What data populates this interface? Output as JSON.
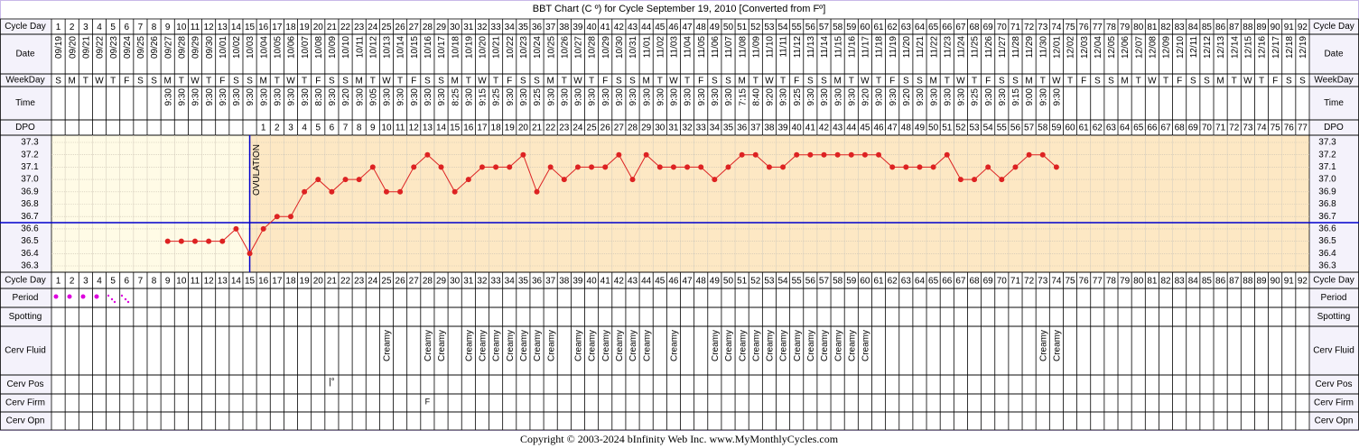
{
  "title": "BBT Chart (C º) for Cycle September 19, 2010  [Converted from Fº]",
  "row_labels": {
    "cycle_day": "Cycle Day",
    "date": "Date",
    "weekday": "WeekDay",
    "time": "Time",
    "dpo": "DPO",
    "period": "Period",
    "spotting": "Spotting",
    "cerv_fluid": "Cerv Fluid",
    "cerv_pos": "Cerv Pos",
    "cerv_firm": "Cerv Firm",
    "cerv_opn": "Cerv Opn"
  },
  "cycle_days": [
    1,
    2,
    3,
    4,
    5,
    6,
    7,
    8,
    9,
    10,
    11,
    12,
    13,
    14,
    15,
    16,
    17,
    18,
    19,
    20,
    21,
    22,
    23,
    24,
    25,
    26,
    27,
    28,
    29,
    30,
    31,
    32,
    33,
    34,
    35,
    36,
    37,
    38,
    39,
    40,
    41,
    42,
    43,
    44,
    45,
    46,
    47,
    48,
    49,
    50,
    51,
    52,
    53,
    54,
    55,
    56,
    57,
    58,
    59,
    60,
    61,
    62,
    63,
    64,
    65,
    66,
    67,
    68,
    69,
    70,
    71,
    72,
    73,
    74,
    75,
    76,
    77,
    78,
    79,
    80,
    81,
    82,
    83,
    84,
    85,
    86,
    87,
    88,
    89,
    90,
    91,
    92
  ],
  "dates": [
    "09/19",
    "09/20",
    "09/21",
    "09/22",
    "09/23",
    "09/24",
    "09/25",
    "09/26",
    "09/27",
    "09/28",
    "09/29",
    "09/30",
    "10/01",
    "10/02",
    "10/03",
    "10/04",
    "10/05",
    "10/06",
    "10/07",
    "10/08",
    "10/09",
    "10/10",
    "10/11",
    "10/12",
    "10/13",
    "10/14",
    "10/15",
    "10/16",
    "10/17",
    "10/18",
    "10/19",
    "10/20",
    "10/21",
    "10/22",
    "10/23",
    "10/24",
    "10/25",
    "10/26",
    "10/27",
    "10/28",
    "10/29",
    "10/30",
    "10/31",
    "11/01",
    "11/02",
    "11/03",
    "11/04",
    "11/05",
    "11/06",
    "11/07",
    "11/08",
    "11/09",
    "11/10",
    "11/11",
    "11/12",
    "11/13",
    "11/14",
    "11/15",
    "11/16",
    "11/17",
    "11/18",
    "11/19",
    "11/20",
    "11/21",
    "11/22",
    "11/23",
    "11/24",
    "11/25",
    "11/26",
    "11/27",
    "11/28",
    "11/29",
    "11/30",
    "12/01",
    "12/02",
    "12/03",
    "12/04",
    "12/05",
    "12/06",
    "12/07",
    "12/08",
    "12/09",
    "12/10",
    "12/11",
    "12/12",
    "12/13",
    "12/14",
    "12/15",
    "12/16",
    "12/17",
    "12/18",
    "12/19"
  ],
  "weekdays": [
    "S",
    "M",
    "T",
    "W",
    "T",
    "F",
    "S",
    "S",
    "M",
    "T",
    "W",
    "T",
    "F",
    "S",
    "S",
    "M",
    "T",
    "W",
    "T",
    "F",
    "S",
    "S",
    "M",
    "T",
    "W",
    "T",
    "F",
    "S",
    "S",
    "M",
    "T",
    "W",
    "T",
    "F",
    "S",
    "S",
    "M",
    "T",
    "W",
    "T",
    "F",
    "S",
    "S",
    "M",
    "T",
    "W",
    "T",
    "F",
    "S",
    "S",
    "M",
    "T",
    "W",
    "T",
    "F",
    "S",
    "S",
    "M",
    "T",
    "W",
    "T",
    "F",
    "S",
    "S",
    "M",
    "T",
    "W",
    "T",
    "F",
    "S",
    "S",
    "M",
    "T",
    "W",
    "T",
    "F",
    "S",
    "S",
    "M",
    "T",
    "W",
    "T",
    "F",
    "S",
    "S",
    "M",
    "T",
    "W",
    "T",
    "F",
    "S",
    "S"
  ],
  "times": [
    null,
    null,
    null,
    null,
    null,
    null,
    null,
    null,
    "9:30",
    "9:30",
    "9:30",
    "9:30",
    "9:30",
    "9:30",
    "9:30",
    "9:30",
    "9:30",
    "9:30",
    "9:30",
    "8:30",
    "9:30",
    "9:20",
    "9:30",
    "9:05",
    "9:30",
    "9:30",
    "9:30",
    "9:30",
    "9:30",
    "8:25",
    "9:30",
    "9:15",
    "9:25",
    "9:30",
    "9:30",
    "9:25",
    "9:30",
    "9:30",
    "9:30",
    "9:30",
    "9:30",
    "9:30",
    "9:30",
    "9:30",
    "9:30",
    "9:30",
    "9:30",
    "9:30",
    "9:30",
    "9:30",
    "7:15",
    "8:40",
    "9:20",
    "9:30",
    "9:25",
    "9:30",
    "9:30",
    "9:30",
    "9:30",
    "9:20",
    "9:30",
    "9:30",
    "9:20",
    "9:30",
    "9:30",
    "9:30",
    "9:30",
    "9:25",
    "9:30",
    "9:30",
    "9:15",
    "9:00",
    "9:30",
    "9:30",
    null,
    null,
    null,
    null,
    null,
    null,
    null,
    null,
    null,
    null,
    null,
    null,
    null,
    null,
    null,
    null,
    null,
    null
  ],
  "dpo": [
    null,
    null,
    null,
    null,
    null,
    null,
    null,
    null,
    null,
    null,
    null,
    null,
    null,
    null,
    null,
    1,
    2,
    3,
    4,
    5,
    6,
    7,
    8,
    9,
    10,
    11,
    12,
    13,
    14,
    15,
    16,
    17,
    18,
    19,
    20,
    21,
    22,
    23,
    24,
    25,
    26,
    27,
    28,
    29,
    30,
    31,
    32,
    33,
    34,
    35,
    36,
    37,
    38,
    39,
    40,
    41,
    42,
    43,
    44,
    45,
    46,
    47,
    48,
    49,
    50,
    51,
    52,
    53,
    54,
    55,
    56,
    57,
    58,
    59,
    60,
    61,
    62,
    63,
    64,
    65,
    66,
    67,
    68,
    69,
    70,
    71,
    72,
    73,
    74,
    75,
    76,
    77
  ],
  "chart_data": {
    "type": "line",
    "color": "#dd2222",
    "x": [
      9,
      10,
      11,
      12,
      13,
      14,
      15,
      16,
      17,
      18,
      19,
      20,
      21,
      22,
      23,
      24,
      25,
      26,
      27,
      28,
      29,
      30,
      31,
      32,
      33,
      34,
      35,
      36,
      37,
      38,
      39,
      40,
      41,
      42,
      43,
      44,
      45,
      46,
      47,
      48,
      49,
      50,
      51,
      52,
      53,
      54,
      55,
      56,
      57,
      58,
      59,
      60,
      61,
      62,
      63,
      64,
      65,
      66,
      67,
      68,
      69,
      70,
      71,
      72,
      73,
      74
    ],
    "values": [
      36.5,
      36.5,
      36.5,
      36.5,
      36.5,
      36.6,
      36.4,
      36.6,
      36.7,
      36.7,
      36.9,
      37,
      36.9,
      37,
      37,
      37.1,
      36.9,
      36.9,
      37.1,
      37.2,
      37.1,
      36.9,
      37,
      37.1,
      37.1,
      37.1,
      37.2,
      36.9,
      37.1,
      37,
      37.1,
      37.1,
      37.1,
      37.2,
      37,
      37.2,
      37.1,
      37.1,
      37.1,
      37.1,
      37,
      37.1,
      37.2,
      37.2,
      37.1,
      37.1,
      37.2,
      37.2,
      37.2,
      37.2,
      37.2,
      37.2,
      37.2,
      37.1,
      37.1,
      37.1,
      37.1,
      37.2,
      37,
      37,
      37.1,
      37,
      37.1,
      37.2,
      37.2,
      37.1
    ],
    "ylim": [
      36.3,
      37.3
    ],
    "yticks": [
      37.3,
      37.2,
      37.1,
      {
        "value": 37,
        "label": "37.0"
      },
      36.9,
      36.8,
      36.7,
      36.6,
      36.5,
      36.4,
      36.3
    ],
    "coverline": 36.65,
    "ovulation_day": 15,
    "ovulation_label": "OVULATION"
  },
  "cerv_fluid": [
    {
      "day": 25,
      "label": "Creamy"
    },
    {
      "day": 28,
      "label": "Creamy"
    },
    {
      "day": 29,
      "label": "Creamy"
    },
    {
      "day": 31,
      "label": "Creamy"
    },
    {
      "day": 32,
      "label": "Creamy"
    },
    {
      "day": 33,
      "label": "Creamy"
    },
    {
      "day": 34,
      "label": "Creamy"
    },
    {
      "day": 35,
      "label": "Creamy"
    },
    {
      "day": 36,
      "label": "Creamy"
    },
    {
      "day": 37,
      "label": "Creamy"
    },
    {
      "day": 39,
      "label": "Creamy"
    },
    {
      "day": 40,
      "label": "Creamy"
    },
    {
      "day": 41,
      "label": "Creamy"
    },
    {
      "day": 42,
      "label": "Creamy"
    },
    {
      "day": 43,
      "label": "Creamy"
    },
    {
      "day": 44,
      "label": "Creamy"
    },
    {
      "day": 46,
      "label": "Creamy"
    },
    {
      "day": 49,
      "label": "Creamy"
    },
    {
      "day": 50,
      "label": "Creamy"
    },
    {
      "day": 51,
      "label": "Creamy"
    },
    {
      "day": 52,
      "label": "Creamy"
    },
    {
      "day": 53,
      "label": "Creamy"
    },
    {
      "day": 54,
      "label": "Creamy"
    },
    {
      "day": 55,
      "label": "Creamy"
    },
    {
      "day": 56,
      "label": "Creamy"
    },
    {
      "day": 57,
      "label": "Creamy"
    },
    {
      "day": 58,
      "label": "Creamy"
    },
    {
      "day": 59,
      "label": "Creamy"
    },
    {
      "day": 60,
      "label": "Creamy"
    },
    {
      "day": 73,
      "label": "Creamy"
    },
    {
      "day": 74,
      "label": "Creamy"
    }
  ],
  "cerv_pos": [
    {
      "day": 21,
      "label": "|°"
    }
  ],
  "cerv_firm": [
    {
      "day": 28,
      "label": "F"
    }
  ],
  "footer": "Copyright © 2003-2024 bInfinity Web Inc.     www.MyMonthlyCycles.com"
}
